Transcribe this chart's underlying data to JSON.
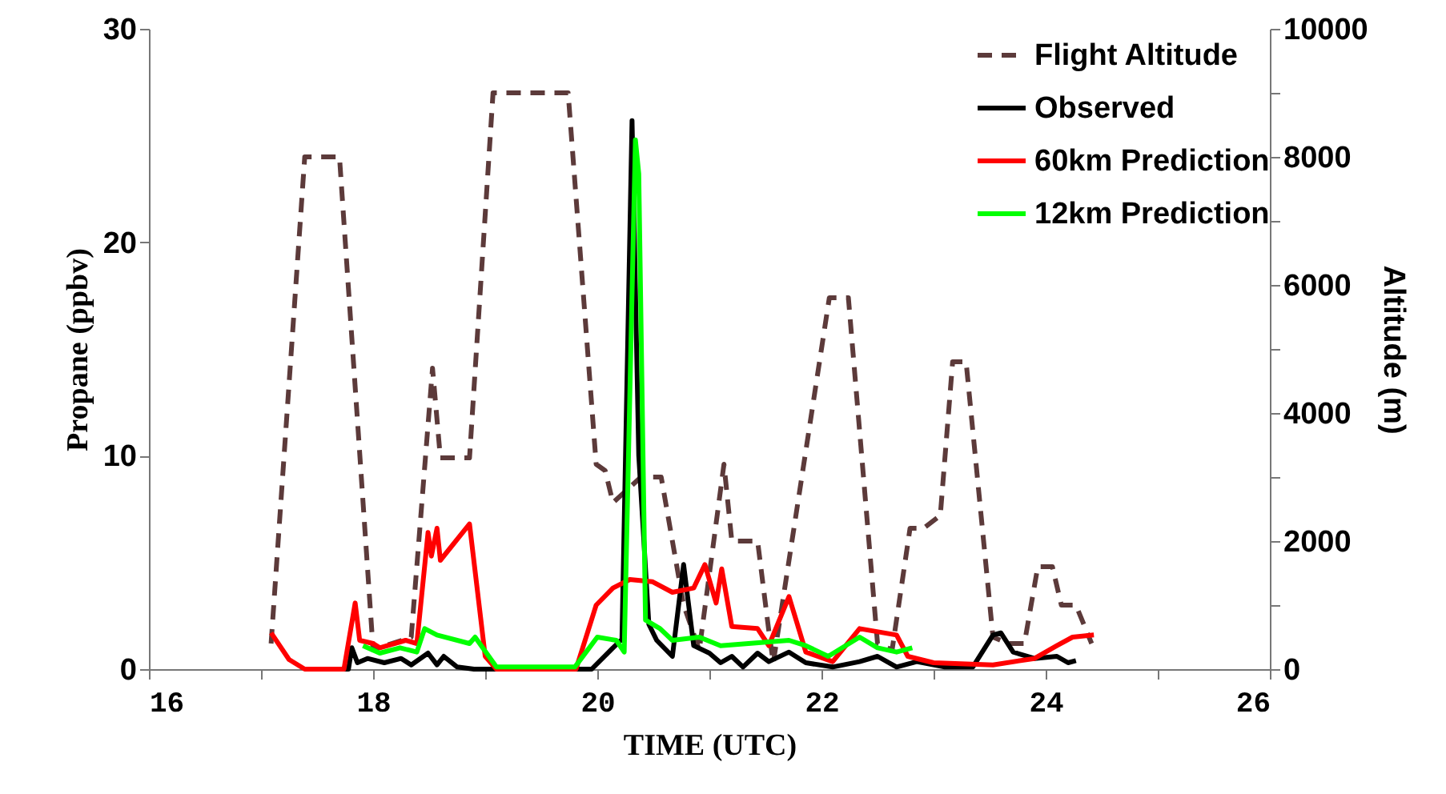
{
  "chart_data": {
    "type": "line",
    "xlabel": "TIME (UTC)",
    "ylabel": "Propane (ppbv)",
    "y2label": "Altitude (m)",
    "legend": "top right",
    "xlim": [
      16,
      26
    ],
    "xticks": [
      16,
      {
        "value": 17,
        "label": null
      },
      18,
      {
        "value": 19,
        "label": null
      },
      20,
      {
        "value": 21,
        "label": null
      },
      22,
      {
        "value": 23,
        "label": null
      },
      24,
      {
        "value": 25,
        "label": null
      },
      26
    ],
    "ylim": [
      0,
      30
    ],
    "yticks": [
      0,
      10,
      20,
      30
    ],
    "y2lim": [
      0,
      10000
    ],
    "y2ticks": [
      0,
      {
        "value": 1000,
        "label": null
      },
      2000,
      {
        "value": 3000,
        "label": null
      },
      4000,
      {
        "value": 5000,
        "label": null
      },
      6000,
      {
        "value": 7000,
        "label": null
      },
      8000,
      {
        "value": 9000,
        "label": null
      },
      10000
    ],
    "series": [
      {
        "name": "Flight Altitude",
        "color": "#5c3a3a",
        "axis": "y2",
        "line_style": "dashed",
        "x": [
          17.09,
          17.39,
          17.7,
          18.0,
          18.34,
          18.53,
          18.6,
          18.86,
          19.07,
          19.74,
          19.99,
          20.07,
          20.14,
          20.39,
          20.57,
          20.67,
          20.77,
          20.91,
          21.13,
          21.2,
          21.43,
          21.53,
          21.57,
          22.07,
          22.24,
          22.5,
          22.63,
          22.79,
          22.91,
          23.06,
          23.17,
          23.29,
          23.53,
          23.67,
          23.81,
          23.93,
          24.06,
          24.14,
          24.27,
          24.41
        ],
        "values": [
          400,
          8000,
          8000,
          300,
          500,
          4700,
          3300,
          3300,
          9000,
          9000,
          3200,
          3100,
          2600,
          3000,
          3000,
          2000,
          1000,
          300,
          3200,
          2000,
          2000,
          600,
          100,
          5800,
          5800,
          400,
          300,
          2200,
          2200,
          2400,
          4800,
          4800,
          500,
          400,
          400,
          1600,
          1600,
          1000,
          1000,
          400
        ]
      },
      {
        "name": "Observed",
        "color": "#000000",
        "line_style": "solid",
        "x": [
          17.7,
          17.78,
          17.81,
          17.86,
          17.95,
          18.1,
          18.25,
          18.34,
          18.49,
          18.57,
          18.63,
          18.75,
          18.9,
          19.5,
          19.95,
          20.14,
          20.22,
          20.31,
          20.37,
          20.46,
          20.53,
          20.67,
          20.77,
          20.86,
          21.0,
          21.1,
          21.2,
          21.3,
          21.43,
          21.53,
          21.71,
          21.86,
          22.1,
          22.34,
          22.5,
          22.67,
          22.85,
          23.1,
          23.35,
          23.53,
          23.6,
          23.71,
          23.9,
          24.1,
          24.2,
          24.27
        ],
        "values": [
          0,
          0,
          1.0,
          0.3,
          0.5,
          0.3,
          0.5,
          0.2,
          0.75,
          0.2,
          0.6,
          0.1,
          0,
          0,
          0,
          1.0,
          1.4,
          25.7,
          10,
          2.1,
          1.35,
          0.6,
          4.9,
          1.1,
          0.75,
          0.3,
          0.6,
          0.1,
          0.75,
          0.35,
          0.8,
          0.3,
          0.1,
          0.35,
          0.6,
          0.1,
          0.35,
          0.1,
          0.1,
          1.6,
          1.7,
          0.8,
          0.5,
          0.6,
          0.3,
          0.4
        ]
      },
      {
        "name": "60km Prediction",
        "color": "#ff0000",
        "line_style": "solid",
        "x": [
          17.09,
          17.25,
          17.39,
          17.74,
          17.84,
          17.88,
          18.0,
          18.06,
          18.29,
          18.39,
          18.49,
          18.52,
          18.57,
          18.6,
          18.86,
          19.0,
          19.1,
          19.81,
          19.99,
          20.14,
          20.29,
          20.49,
          20.67,
          20.86,
          20.96,
          21.06,
          21.11,
          21.2,
          21.43,
          21.53,
          21.71,
          21.86,
          22.1,
          22.34,
          22.67,
          22.77,
          23.0,
          23.53,
          23.9,
          24.1,
          24.24,
          24.43
        ],
        "values": [
          1.7,
          0.45,
          0,
          0,
          3.1,
          1.35,
          1.2,
          1.0,
          1.35,
          1.2,
          6.4,
          5.3,
          6.6,
          5.1,
          6.8,
          0.6,
          0,
          0,
          3.0,
          3.8,
          4.2,
          4.1,
          3.6,
          3.8,
          4.9,
          3.1,
          4.7,
          2.0,
          1.9,
          1.1,
          3.4,
          0.8,
          0.35,
          1.9,
          1.6,
          0.6,
          0.3,
          0.2,
          0.5,
          1.1,
          1.5,
          1.6
        ]
      },
      {
        "name": "12km Prediction",
        "color": "#00ff00",
        "line_style": "solid",
        "x": [
          17.91,
          18.06,
          18.24,
          18.39,
          18.46,
          18.57,
          18.86,
          18.91,
          19.1,
          19.8,
          20.0,
          20.17,
          20.24,
          20.34,
          20.37,
          20.43,
          20.56,
          20.67,
          20.91,
          21.1,
          21.71,
          21.86,
          22.06,
          22.34,
          22.5,
          22.67,
          22.81
        ],
        "values": [
          1.1,
          0.75,
          1.0,
          0.8,
          1.9,
          1.6,
          1.2,
          1.5,
          0.1,
          0.1,
          1.5,
          1.35,
          0.8,
          24.8,
          23.2,
          2.3,
          1.9,
          1.35,
          1.5,
          1.1,
          1.35,
          1.1,
          0.6,
          1.5,
          1.0,
          0.8,
          1.0
        ]
      }
    ]
  }
}
